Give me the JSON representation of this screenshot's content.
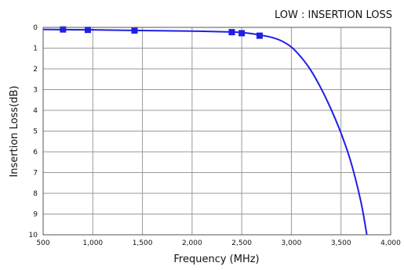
{
  "chart_data": {
    "type": "line",
    "title": "LOW : INSERTION LOSS",
    "xlabel": "Frequency (MHz)",
    "ylabel": "Insertion Loss(dB)",
    "xlim": [
      500,
      4000
    ],
    "ylim": [
      0,
      10
    ],
    "y_inverted": true,
    "grid": true,
    "x_ticks": [
      500,
      1000,
      1500,
      2000,
      2500,
      3000,
      3500,
      4000
    ],
    "x_tick_labels": [
      "500",
      "1,000",
      "1,500",
      "2,000",
      "2,500",
      "3,000",
      "3,500",
      "4,000"
    ],
    "y_ticks": [
      0,
      1,
      2,
      3,
      4,
      5,
      6,
      7,
      8,
      9,
      10
    ],
    "y_tick_labels": [
      "0",
      "1",
      "2",
      "3",
      "4",
      "5",
      "6",
      "7",
      "8",
      "9",
      "10"
    ],
    "series": [
      {
        "color": "#1f1fe6",
        "curve": {
          "x": [
            500,
            1000,
            1500,
            2000,
            2400,
            2500,
            2600,
            2700,
            2800,
            2900,
            3000,
            3100,
            3200,
            3300,
            3400,
            3500,
            3600,
            3700,
            3760
          ],
          "y": [
            0.1,
            0.12,
            0.15,
            0.18,
            0.22,
            0.25,
            0.3,
            0.38,
            0.48,
            0.65,
            0.95,
            1.45,
            2.1,
            2.95,
            3.95,
            5.1,
            6.5,
            8.4,
            10.0
          ]
        },
        "markers": {
          "x": [
            700,
            950,
            1420,
            2400,
            2500,
            2680
          ],
          "y": [
            0.1,
            0.12,
            0.15,
            0.23,
            0.28,
            0.4
          ]
        }
      }
    ]
  }
}
